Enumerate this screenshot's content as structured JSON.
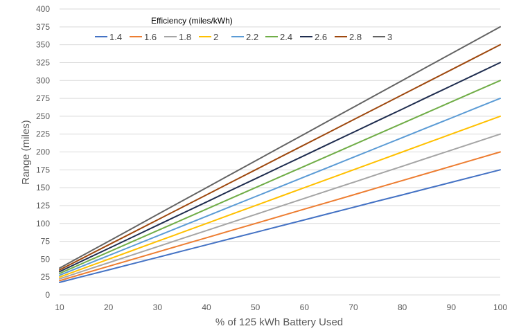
{
  "chart_data": {
    "type": "line",
    "title": "",
    "xlabel": "% of 125 kWh Battery Used",
    "ylabel": "Range (miles)",
    "xlim": [
      10,
      100
    ],
    "ylim": [
      0,
      400
    ],
    "x_ticks": [
      10,
      20,
      30,
      40,
      50,
      60,
      70,
      80,
      90,
      100
    ],
    "y_ticks": [
      0,
      25,
      50,
      75,
      100,
      125,
      150,
      175,
      200,
      225,
      250,
      275,
      300,
      325,
      350,
      375,
      400
    ],
    "grid": "horizontal",
    "legend": {
      "title": "Efficiency (miles/kWh)",
      "placement": "top-left"
    },
    "x": [
      10,
      15,
      20,
      25,
      30,
      35,
      40,
      45,
      50,
      55,
      60,
      65,
      70,
      75,
      80,
      85,
      90,
      95,
      100
    ],
    "series": [
      {
        "name": "1.4",
        "color": "#4472c4",
        "values": [
          17.5,
          26.3,
          35,
          43.8,
          52.5,
          61.3,
          70,
          78.8,
          87.5,
          96.3,
          105,
          113.8,
          122.5,
          131.3,
          140,
          148.8,
          157.5,
          166.3,
          175
        ]
      },
      {
        "name": "1.6",
        "color": "#ed7d31",
        "values": [
          20,
          30,
          40,
          50,
          60,
          70,
          80,
          90,
          100,
          110,
          120,
          130,
          140,
          150,
          160,
          170,
          180,
          190,
          200
        ]
      },
      {
        "name": "1.8",
        "color": "#a5a5a5",
        "values": [
          22.5,
          33.8,
          45,
          56.3,
          67.5,
          78.8,
          90,
          101.3,
          112.5,
          123.8,
          135,
          146.3,
          157.5,
          168.8,
          180,
          191.3,
          202.5,
          213.8,
          225
        ]
      },
      {
        "name": "2",
        "color": "#ffc000",
        "values": [
          25,
          37.5,
          50,
          62.5,
          75,
          87.5,
          100,
          112.5,
          125,
          137.5,
          150,
          162.5,
          175,
          187.5,
          200,
          212.5,
          225,
          237.5,
          250
        ]
      },
      {
        "name": "2.2",
        "color": "#5b9bd5",
        "values": [
          27.5,
          41.3,
          55,
          68.8,
          82.5,
          96.3,
          110,
          123.8,
          137.5,
          151.3,
          165,
          178.8,
          192.5,
          206.3,
          220,
          233.8,
          247.5,
          261.3,
          275
        ]
      },
      {
        "name": "2.4",
        "color": "#70ad47",
        "values": [
          30,
          45,
          60,
          75,
          90,
          105,
          120,
          135,
          150,
          165,
          180,
          195,
          210,
          225,
          240,
          255,
          270,
          285,
          300
        ]
      },
      {
        "name": "2.6",
        "color": "#1f2d4f",
        "values": [
          32.5,
          48.8,
          65,
          81.3,
          97.5,
          113.8,
          130,
          146.3,
          162.5,
          178.8,
          195,
          211.3,
          227.5,
          243.8,
          260,
          276.3,
          292.5,
          308.8,
          325
        ]
      },
      {
        "name": "2.8",
        "color": "#9e480e",
        "values": [
          35,
          52.5,
          70,
          87.5,
          105,
          122.5,
          140,
          157.5,
          175,
          192.5,
          210,
          227.5,
          245,
          262.5,
          280,
          297.5,
          315,
          332.5,
          350
        ]
      },
      {
        "name": "3",
        "color": "#636363",
        "values": [
          37.5,
          56.3,
          75,
          93.8,
          112.5,
          131.3,
          150,
          168.8,
          187.5,
          206.3,
          225,
          243.8,
          262.5,
          281.3,
          300,
          318.8,
          337.5,
          356.3,
          375
        ]
      }
    ]
  }
}
